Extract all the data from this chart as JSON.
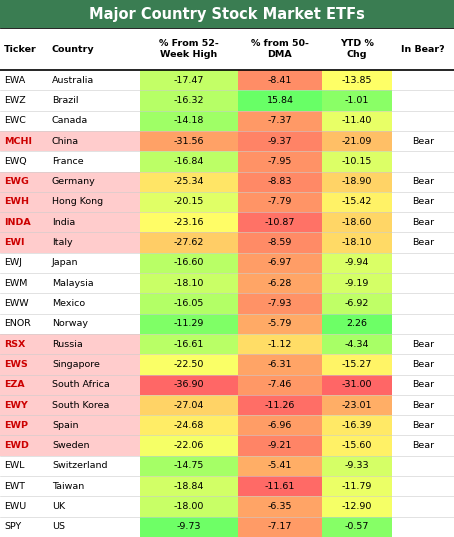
{
  "title": "Major Country Stock Market ETFs",
  "title_bg": "#3a7d52",
  "title_text_color": "white",
  "rows": [
    [
      "EWA",
      "Australia",
      -17.47,
      -8.41,
      -13.85,
      ""
    ],
    [
      "EWZ",
      "Brazil",
      -16.32,
      15.84,
      -1.01,
      ""
    ],
    [
      "EWC",
      "Canada",
      -14.18,
      -7.37,
      -11.4,
      ""
    ],
    [
      "MCHI",
      "China",
      -31.56,
      -9.37,
      -21.09,
      "Bear"
    ],
    [
      "EWQ",
      "France",
      -16.84,
      -7.95,
      -10.15,
      ""
    ],
    [
      "EWG",
      "Germany",
      -25.34,
      -8.83,
      -18.9,
      "Bear"
    ],
    [
      "EWH",
      "Hong Kong",
      -20.15,
      -7.79,
      -15.42,
      "Bear"
    ],
    [
      "INDA",
      "India",
      -23.16,
      -10.87,
      -18.6,
      "Bear"
    ],
    [
      "EWI",
      "Italy",
      -27.62,
      -8.59,
      -18.1,
      "Bear"
    ],
    [
      "EWJ",
      "Japan",
      -16.6,
      -6.97,
      -9.94,
      ""
    ],
    [
      "EWM",
      "Malaysia",
      -18.1,
      -6.28,
      -9.19,
      ""
    ],
    [
      "EWW",
      "Mexico",
      -16.05,
      -7.93,
      -6.92,
      ""
    ],
    [
      "ENOR",
      "Norway",
      -11.29,
      -5.79,
      2.26,
      ""
    ],
    [
      "RSX",
      "Russia",
      -16.61,
      -1.12,
      -4.34,
      "Bear"
    ],
    [
      "EWS",
      "Singapore",
      -22.5,
      -6.31,
      -15.27,
      "Bear"
    ],
    [
      "EZA",
      "South Africa",
      -36.9,
      -7.46,
      -31.0,
      "Bear"
    ],
    [
      "EWY",
      "South Korea",
      -27.04,
      -11.26,
      -23.01,
      "Bear"
    ],
    [
      "EWP",
      "Spain",
      -24.68,
      -6.96,
      -16.39,
      "Bear"
    ],
    [
      "EWD",
      "Sweden",
      -22.06,
      -9.21,
      -15.6,
      "Bear"
    ],
    [
      "EWL",
      "Switzerland",
      -14.75,
      -5.41,
      -9.33,
      ""
    ],
    [
      "EWT",
      "Taiwan",
      -18.84,
      -11.61,
      -11.79,
      ""
    ],
    [
      "EWU",
      "UK",
      -18.0,
      -6.35,
      -12.9,
      ""
    ],
    [
      "SPY",
      "US",
      -9.73,
      -7.17,
      -0.57,
      ""
    ]
  ],
  "col2_range": [
    -37.0,
    -9.0
  ],
  "col3_range": [
    -12.0,
    16.0
  ],
  "col4_range": [
    -31.0,
    3.0
  ]
}
